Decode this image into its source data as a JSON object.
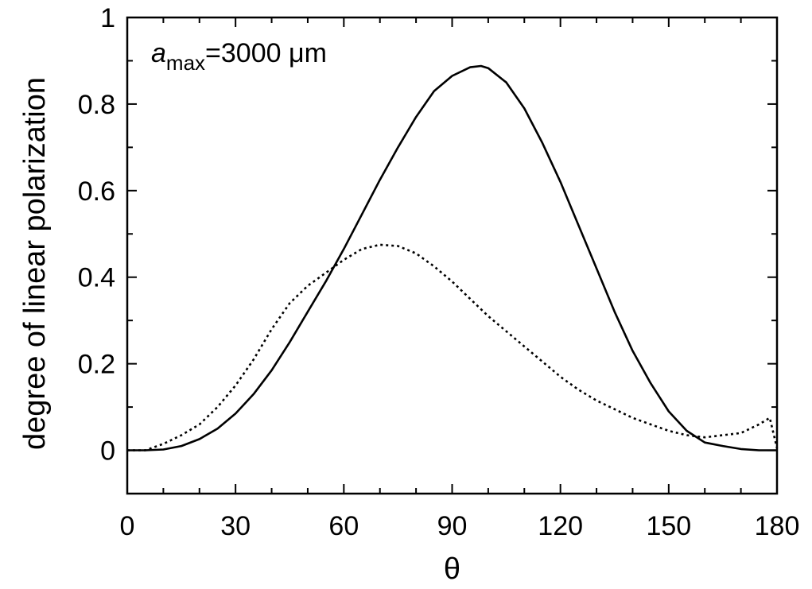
{
  "chart_data": {
    "type": "line",
    "xlabel": "θ",
    "ylabel": "degree of linear polarization",
    "xlim": [
      0,
      180
    ],
    "ylim": [
      -0.1,
      1.0
    ],
    "xticks": [
      "0",
      "30",
      "60",
      "90",
      "120",
      "150",
      "180"
    ],
    "yticks": [
      "0",
      "0.2",
      "0.4",
      "0.6",
      "0.8",
      "1"
    ],
    "grid": false,
    "annotation": {
      "italic": "a",
      "subscript": "max",
      "rest": "=3000 μm"
    },
    "series": [
      {
        "style": "solid",
        "x": [
          0,
          5,
          10,
          15,
          20,
          25,
          30,
          35,
          40,
          45,
          50,
          55,
          60,
          65,
          70,
          75,
          80,
          85,
          90,
          95,
          98,
          100,
          105,
          110,
          115,
          120,
          125,
          130,
          135,
          140,
          145,
          150,
          155,
          160,
          165,
          170,
          175,
          180
        ],
        "y": [
          0,
          0,
          0.002,
          0.01,
          0.026,
          0.05,
          0.085,
          0.13,
          0.185,
          0.25,
          0.32,
          0.39,
          0.465,
          0.545,
          0.625,
          0.7,
          0.77,
          0.83,
          0.865,
          0.885,
          0.888,
          0.883,
          0.85,
          0.79,
          0.71,
          0.62,
          0.52,
          0.42,
          0.32,
          0.23,
          0.155,
          0.09,
          0.045,
          0.018,
          0.01,
          0.003,
          0,
          0
        ]
      },
      {
        "style": "dotted",
        "x": [
          0,
          5,
          10,
          15,
          20,
          25,
          30,
          35,
          40,
          45,
          50,
          55,
          60,
          65,
          70,
          75,
          80,
          85,
          90,
          95,
          100,
          105,
          110,
          115,
          120,
          125,
          130,
          135,
          140,
          145,
          150,
          155,
          160,
          165,
          170,
          175,
          178,
          180
        ],
        "y": [
          0,
          0,
          0.015,
          0.035,
          0.06,
          0.1,
          0.15,
          0.21,
          0.28,
          0.34,
          0.38,
          0.41,
          0.44,
          0.465,
          0.475,
          0.472,
          0.455,
          0.425,
          0.39,
          0.35,
          0.31,
          0.275,
          0.24,
          0.205,
          0.17,
          0.14,
          0.115,
          0.095,
          0.075,
          0.06,
          0.045,
          0.035,
          0.03,
          0.035,
          0.04,
          0.06,
          0.075,
          0.005
        ]
      }
    ]
  }
}
